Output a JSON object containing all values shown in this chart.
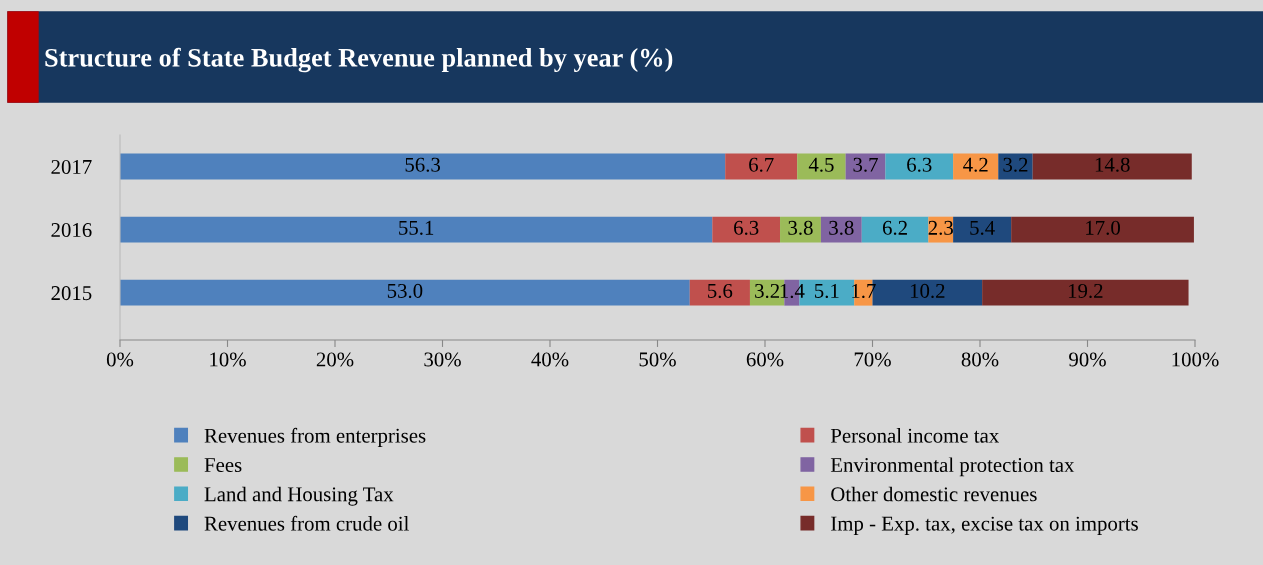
{
  "chart_data": {
    "type": "bar",
    "orientation": "horizontal",
    "stacked": true,
    "title": "Structure of State Budget Revenue planned by year (%)",
    "categories": [
      "2017",
      "2016",
      "2015"
    ],
    "series": [
      {
        "name": "Revenues from enterprises",
        "color": "#4f81bd",
        "values": [
          56.3,
          55.1,
          53.0
        ],
        "value_labels": [
          "56.3",
          "55.1",
          "53.0"
        ]
      },
      {
        "name": "Personal income tax",
        "color": "#c0504d",
        "values": [
          6.7,
          6.3,
          5.6
        ],
        "value_labels": [
          "6.7",
          "6.3",
          "5.6"
        ]
      },
      {
        "name": "Fees",
        "color": "#9bbb59",
        "values": [
          4.5,
          3.8,
          3.2
        ],
        "value_labels": [
          "4.5",
          "3.8",
          "3.2"
        ]
      },
      {
        "name": "Environmental protection tax",
        "color": "#8064a2",
        "values": [
          3.7,
          3.8,
          1.4
        ],
        "value_labels": [
          "3.7",
          "3.8",
          "1.4"
        ]
      },
      {
        "name": "Land and Housing Tax",
        "color": "#4bacc6",
        "values": [
          6.3,
          6.2,
          5.1
        ],
        "value_labels": [
          "6.3",
          "6.2",
          "5.1"
        ]
      },
      {
        "name": "Other domestic revenues",
        "color": "#f79646",
        "values": [
          4.2,
          2.3,
          1.7
        ],
        "value_labels": [
          "4.2",
          "2.3",
          "1.7"
        ]
      },
      {
        "name": "Revenues from crude oil",
        "color": "#1f497d",
        "values": [
          3.2,
          5.4,
          10.2
        ],
        "value_labels": [
          "3.2",
          "5.4",
          "10.2"
        ]
      },
      {
        "name": "Imp - Exp. tax, excise tax on imports",
        "color": "#772c2a",
        "values": [
          14.8,
          17.0,
          19.2
        ],
        "value_labels": [
          "14.8",
          "17.0",
          "19.2"
        ]
      }
    ],
    "xlim": [
      0,
      100
    ],
    "xticks": [
      {
        "value": 0,
        "label": "0%"
      },
      {
        "value": 10,
        "label": "10%"
      },
      {
        "value": 20,
        "label": "20%"
      },
      {
        "value": 30,
        "label": "30%"
      },
      {
        "value": 40,
        "label": "40%"
      },
      {
        "value": 50,
        "label": "50%"
      },
      {
        "value": 60,
        "label": "60%"
      },
      {
        "value": 70,
        "label": "70%"
      },
      {
        "value": 80,
        "label": "80%"
      },
      {
        "value": 90,
        "label": "90%"
      },
      {
        "value": 100,
        "label": "100%"
      }
    ],
    "grid": false,
    "legend": "bottom"
  }
}
